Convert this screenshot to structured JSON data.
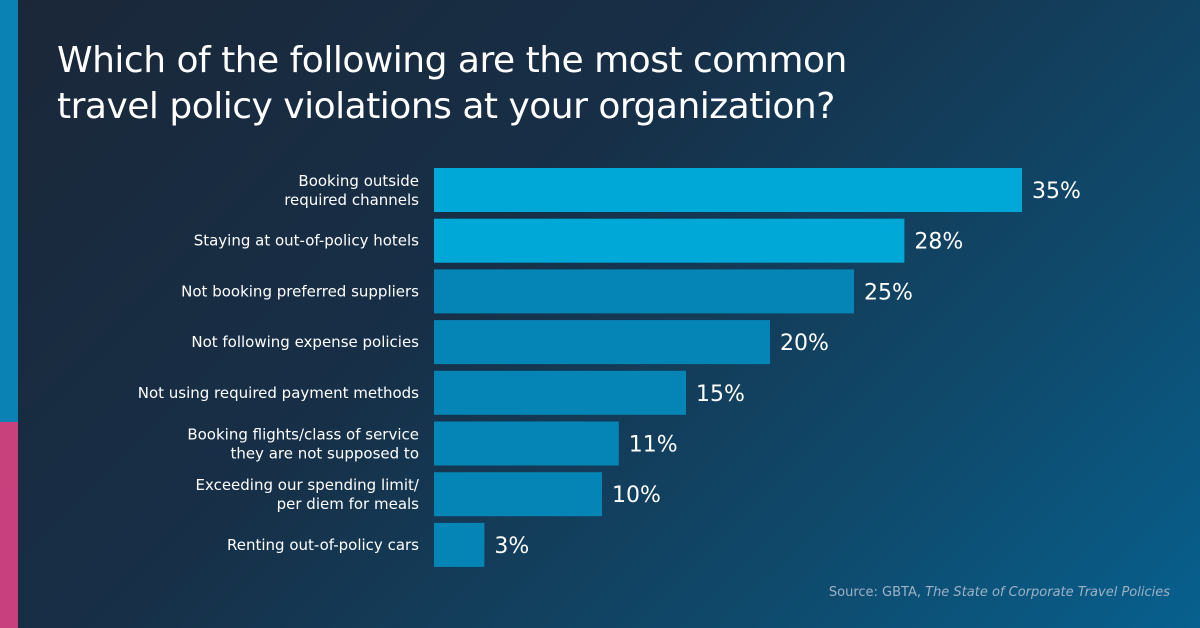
{
  "title_lines": [
    "Which of the following are the most common",
    "travel policy violations at your organization?"
  ],
  "source": {
    "prefix": "Source: GBTA, ",
    "publication": "The State of Corporate Travel Policies"
  },
  "colors": {
    "highlight_bar": "#00a8d8",
    "bar": "#0585b5",
    "accent_blue": "#0a82b4",
    "accent_pink": "#c8417d"
  },
  "chart_data": {
    "type": "bar",
    "orientation": "horizontal",
    "categories": [
      [
        "Booking outside",
        "required channels"
      ],
      [
        "Staying at out-of-policy hotels"
      ],
      [
        "Not booking preferred suppliers"
      ],
      [
        "Not following expense policies"
      ],
      [
        "Not using required payment methods"
      ],
      [
        "Booking flights/class of service",
        "they are not supposed to"
      ],
      [
        "Exceeding our spending limit/",
        "per diem for meals"
      ],
      [
        "Renting out-of-policy cars"
      ]
    ],
    "values": [
      35,
      28,
      25,
      20,
      15,
      11,
      10,
      3
    ],
    "value_labels": [
      "35%",
      "28%",
      "25%",
      "20%",
      "15%",
      "11%",
      "10%",
      "3%"
    ],
    "highlighted": [
      true,
      true,
      false,
      false,
      false,
      false,
      false,
      false
    ],
    "unit": "%",
    "title": "Which of the following are the most common travel policy violations at your organization?",
    "xlabel": "",
    "ylabel": "",
    "grid": false
  }
}
